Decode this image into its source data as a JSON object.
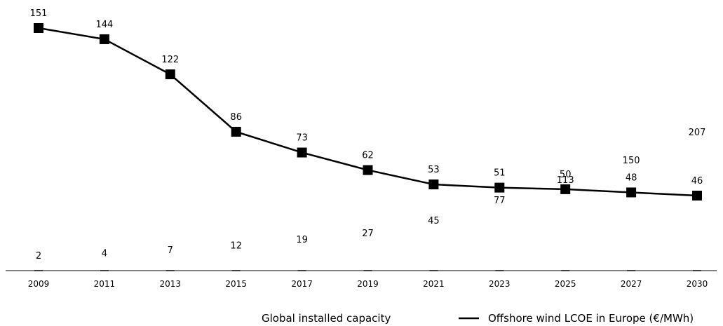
{
  "chart_data": {
    "type": "line",
    "categories": [
      "2009",
      "2011",
      "2013",
      "2015",
      "2017",
      "2019",
      "2021",
      "2023",
      "2025",
      "2027",
      "2030"
    ],
    "series": [
      {
        "name": "Global installed capacity",
        "type": "bar",
        "values": [
          2,
          4,
          7,
          12,
          19,
          27,
          45,
          77,
          113,
          150,
          207
        ],
        "color": "#ffffff"
      },
      {
        "name": "Offshore wind LCOE in Europe (€/MWh)",
        "type": "line",
        "values": [
          151,
          144,
          122,
          86,
          73,
          62,
          53,
          51,
          50,
          48,
          46
        ],
        "color": "#000000",
        "marker": "square"
      }
    ],
    "legend": {
      "position": "bottom-right",
      "capacity_label": "Global installed capacity",
      "lcoe_label": "Offshore wind LCOE in Europe (€/MWh)"
    },
    "grid": false
  }
}
